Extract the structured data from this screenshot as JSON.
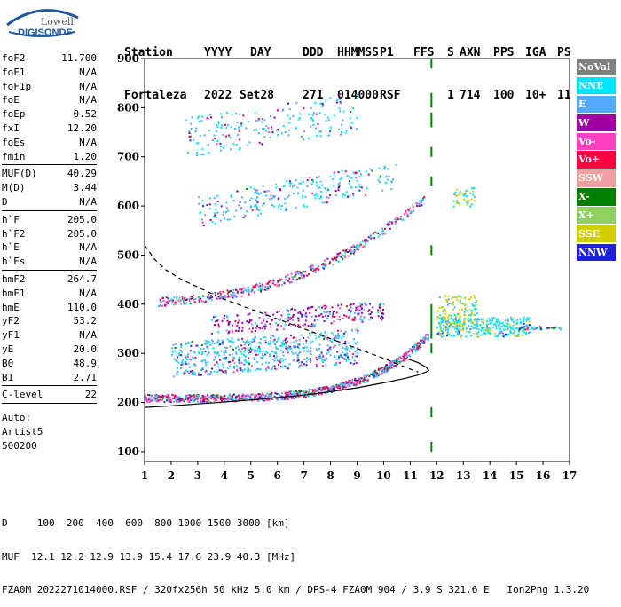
{
  "logo": {
    "brand": "Lowell",
    "product": "DIGISONDE"
  },
  "header": {
    "labels": [
      "Station",
      "YYYY",
      "DAY",
      "DDD",
      "HHMMSS",
      "P1",
      "FFS",
      "S",
      "AXN",
      "PPS",
      "IGA",
      "PS"
    ],
    "values": [
      "Fortaleza",
      "2022",
      "Set28",
      "271",
      "014000",
      "RSF",
      "",
      "1",
      "714",
      "100",
      "10+",
      "11"
    ]
  },
  "params": [
    {
      "name": "foF2",
      "value": "11.700"
    },
    {
      "name": "foF1",
      "value": "N/A"
    },
    {
      "name": "foF1p",
      "value": "N/A"
    },
    {
      "name": "foE",
      "value": "N/A"
    },
    {
      "name": "foEp",
      "value": "0.52"
    },
    {
      "name": "fxI",
      "value": "12.20"
    },
    {
      "name": "foEs",
      "value": "N/A"
    },
    {
      "name": "fmin",
      "value": "1.20"
    },
    {
      "sep": true
    },
    {
      "name": "MUF(D)",
      "value": "40.29"
    },
    {
      "name": "M(D)",
      "value": "3.44"
    },
    {
      "name": "D",
      "value": "N/A"
    },
    {
      "sep": true
    },
    {
      "name": "h`F",
      "value": "205.0"
    },
    {
      "name": "h`F2",
      "value": "205.0"
    },
    {
      "name": "h`E",
      "value": "N/A"
    },
    {
      "name": "h`Es",
      "value": "N/A"
    },
    {
      "sep": true
    },
    {
      "name": "hmF2",
      "value": "264.7"
    },
    {
      "name": "hmF1",
      "value": "N/A"
    },
    {
      "name": "hmE",
      "value": "110.0"
    },
    {
      "name": "yF2",
      "value": "53.2"
    },
    {
      "name": "yF1",
      "value": "N/A"
    },
    {
      "name": "yE",
      "value": "20.0"
    },
    {
      "name": "B0",
      "value": "48.9"
    },
    {
      "name": "B1",
      "value": "2.71"
    },
    {
      "sep": true
    },
    {
      "name": "C-level",
      "value": "22"
    },
    {
      "sep": true
    }
  ],
  "auto": {
    "label": "Auto:",
    "name": "Artist5",
    "code": "500200"
  },
  "legend": [
    {
      "label": "NoVal",
      "color": "#808080"
    },
    {
      "label": "NNE",
      "color": "#00E5FF"
    },
    {
      "label": "E",
      "color": "#55AAFF"
    },
    {
      "label": "W",
      "color": "#A000A0"
    },
    {
      "label": "Vo-",
      "color": "#FF40C0"
    },
    {
      "label": "Vo+",
      "color": "#FF0040"
    },
    {
      "label": "SSW",
      "color": "#F0A0A0"
    },
    {
      "label": "X-",
      "color": "#008000"
    },
    {
      "label": "X+",
      "color": "#90D060"
    },
    {
      "label": "SSE",
      "color": "#D0D000"
    },
    {
      "label": "NNW",
      "color": "#2020E0"
    }
  ],
  "footer": {
    "line1": "D     100  200  400  600  800 1000 1500 3000 [km]",
    "line2": "MUF  12.1 12.2 12.9 13.9 15.4 17.6 23.9 40.3 [MHz]",
    "line3": "FZA0M_2022271014000.RSF / 320fx256h 50 kHz 5.0 km / DPS-4 FZA0M 904 / 3.9 S 321.6 E   Ion2Png 1.3.20"
  },
  "chart_data": {
    "type": "scatter",
    "xlim": [
      1,
      17
    ],
    "ylim": [
      80,
      900
    ],
    "xticks": [
      "1",
      "2",
      "3",
      "4",
      "5",
      "6",
      "7",
      "8",
      "9",
      "10",
      "11",
      "12",
      "13",
      "14",
      "15",
      "16",
      "17"
    ],
    "yticks": [
      "100",
      "200",
      "300",
      "400",
      "500",
      "600",
      "700",
      "800",
      "900"
    ],
    "grid": false,
    "legend_position": "right",
    "profile_curve": {
      "f": [
        1.0,
        2.0,
        3.0,
        4.0,
        5.0,
        6.0,
        7.0,
        8.0,
        9.0,
        10.0,
        10.8,
        11.3,
        11.6,
        11.7,
        11.6,
        11.3,
        10.9
      ],
      "h": [
        190,
        193,
        197,
        201,
        205,
        210,
        215,
        222,
        230,
        240,
        249,
        256,
        262,
        265,
        272,
        281,
        289
      ]
    },
    "mf2_curve": {
      "f": [
        1.0,
        1.4,
        1.8,
        2.4,
        3.0,
        4.0,
        5.0,
        6.0,
        7.0,
        8.0,
        9.0,
        10.0,
        10.8,
        11.3
      ],
      "h": [
        520,
        490,
        470,
        450,
        435,
        410,
        390,
        370,
        350,
        330,
        310,
        290,
        272,
        262
      ]
    },
    "dashed_marker_f": 11.8
  }
}
